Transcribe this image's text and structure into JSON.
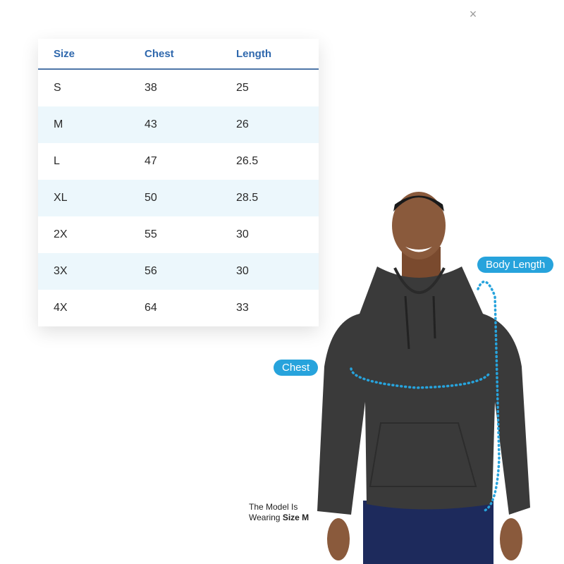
{
  "close_label": "×",
  "table": {
    "headers": [
      "Size",
      "Chest",
      "Length"
    ],
    "rows": [
      [
        "S",
        "38",
        "25"
      ],
      [
        "M",
        "43",
        "26"
      ],
      [
        "L",
        "47",
        "26.5"
      ],
      [
        "XL",
        "50",
        "28.5"
      ],
      [
        "2X",
        "55",
        "30"
      ],
      [
        "3X",
        "56",
        "30"
      ],
      [
        "4X",
        "64",
        "33"
      ]
    ]
  },
  "labels": {
    "body_length": "Body Length",
    "chest": "Chest"
  },
  "note": {
    "line1": "The Model Is",
    "line2_prefix": "Wearing ",
    "line2_bold": "Size M"
  },
  "colors": {
    "header_text": "#2f68ad",
    "alt_row": "#ecf7fc",
    "accent": "#27a3dc",
    "hoodie": "#3a3a3a"
  }
}
